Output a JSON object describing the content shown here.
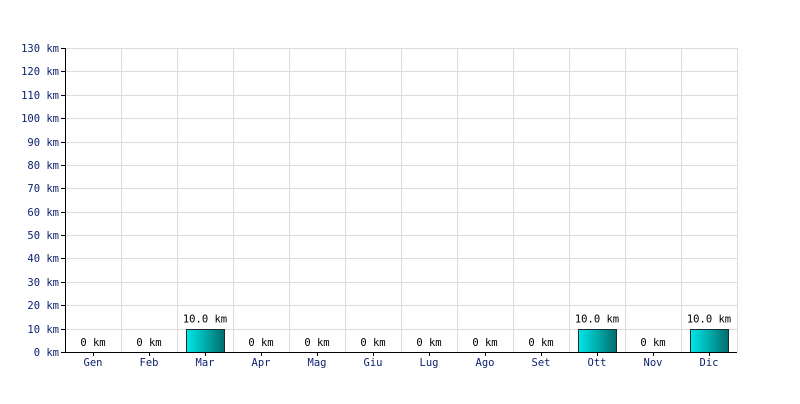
{
  "chart_data": {
    "type": "bar",
    "title": "",
    "xlabel": "",
    "ylabel": "",
    "unit": "km",
    "categories": [
      "Gen",
      "Feb",
      "Mar",
      "Apr",
      "Mag",
      "Giu",
      "Lug",
      "Ago",
      "Set",
      "Ott",
      "Nov",
      "Dic"
    ],
    "values": [
      0,
      0,
      10,
      0,
      0,
      0,
      0,
      0,
      0,
      10,
      0,
      10
    ],
    "data_labels": [
      "0 km",
      "0 km",
      "10.0 km",
      "0 km",
      "0 km",
      "0 km",
      "0 km",
      "0 km",
      "0 km",
      "10.0 km",
      "0 km",
      "10.0 km"
    ],
    "ylim": [
      0,
      130
    ],
    "y_ticks": [
      0,
      10,
      20,
      30,
      40,
      50,
      60,
      70,
      80,
      90,
      100,
      110,
      120,
      130
    ],
    "y_tick_labels": [
      "0 km",
      "10 km",
      "20 km",
      "30 km",
      "40 km",
      "50 km",
      "60 km",
      "70 km",
      "80 km",
      "90 km",
      "100 km",
      "110 km",
      "120 km",
      "130 km"
    ],
    "grid": true,
    "legend": "none",
    "colors": {
      "bar_light": "#00e8e8",
      "bar_dark": "#006e6e",
      "bar_border": "#1b2a2a",
      "grid": "#dcdcdc",
      "tick_text": "#0a1f6b"
    }
  }
}
